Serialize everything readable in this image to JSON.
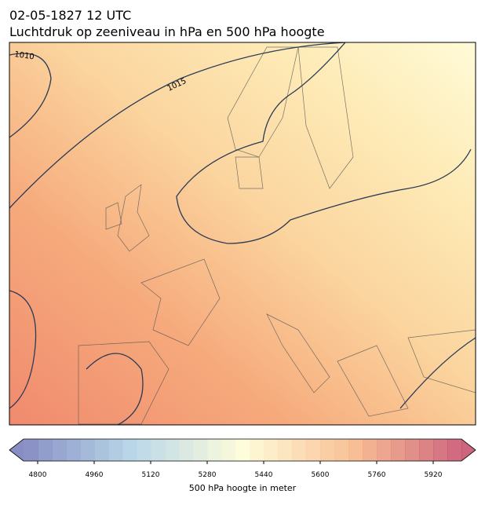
{
  "title": [
    "02-05-1827 12 UTC",
    "Luchtdruk op zeeniveau in hPa en 500 hPa hoogte"
  ],
  "map": {
    "contour_labels": [
      "1010",
      "1015"
    ]
  },
  "colorbar": {
    "label": "500 hPa hoogte in meter",
    "lim": [
      4760,
      6000
    ],
    "ticks": [
      4800,
      4960,
      5120,
      5280,
      5440,
      5600,
      5760,
      5920
    ],
    "colors": [
      "#6a72b5",
      "#a9cfe4",
      "#fdfbd2",
      "#f8b27c",
      "#c13f5f"
    ]
  }
}
